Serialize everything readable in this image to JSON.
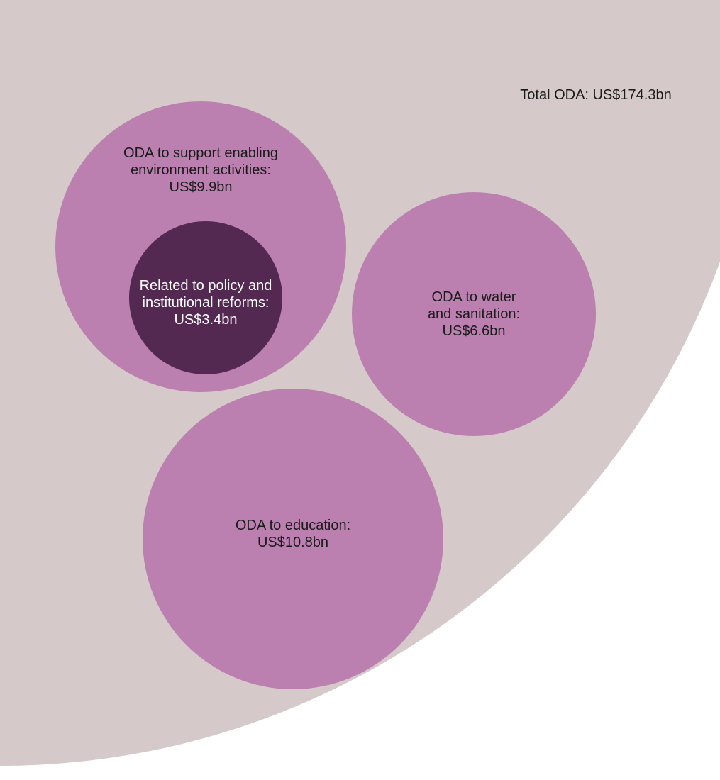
{
  "chart_data": {
    "type": "bubble",
    "unit": "US$ bn",
    "items": [
      {
        "id": "total",
        "lines": [
          "Total ODA: US$174.3bn"
        ],
        "label": "Total ODA",
        "value": 174.3
      },
      {
        "id": "enabling",
        "lines": [
          "ODA to support enabling",
          "environment activities:",
          "US$9.9bn"
        ],
        "label": "ODA to support enabling environment activities",
        "value": 9.9
      },
      {
        "id": "policy",
        "lines": [
          "Related to policy and",
          "institutional reforms:",
          "US$3.4bn"
        ],
        "label": "Related to policy and institutional reforms",
        "value": 3.4,
        "subset_of": "enabling"
      },
      {
        "id": "water",
        "lines": [
          "ODA to water",
          "and sanitation:",
          "US$6.6bn"
        ],
        "label": "ODA to water and sanitation",
        "value": 6.6
      },
      {
        "id": "education",
        "lines": [
          "ODA to education:",
          "US$10.8bn"
        ],
        "label": "ODA to education",
        "value": 10.8
      }
    ]
  },
  "colors": {
    "total": "#d5c9c9",
    "category": "#bb80b0",
    "subset": "#532952",
    "text_dark": "#1a1a1a",
    "text_light": "#ffffff"
  }
}
